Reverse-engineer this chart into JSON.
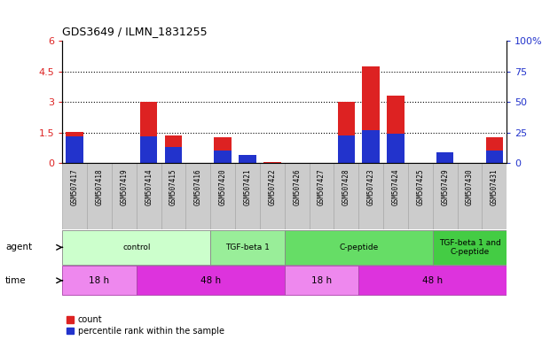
{
  "title": "GDS3649 / ILMN_1831255",
  "samples": [
    "GSM507417",
    "GSM507418",
    "GSM507419",
    "GSM507414",
    "GSM507415",
    "GSM507416",
    "GSM507420",
    "GSM507421",
    "GSM507422",
    "GSM507426",
    "GSM507427",
    "GSM507428",
    "GSM507423",
    "GSM507424",
    "GSM507425",
    "GSM507429",
    "GSM507430",
    "GSM507431"
  ],
  "count_values": [
    1.55,
    0.0,
    0.0,
    3.02,
    1.35,
    0.0,
    1.27,
    0.0,
    0.07,
    0.0,
    0.0,
    3.02,
    4.75,
    3.32,
    0.0,
    0.0,
    0.0,
    1.27
  ],
  "percentile_values_pct": [
    22,
    0,
    0,
    22,
    13,
    0,
    10,
    7,
    0,
    0,
    0,
    23,
    27,
    24,
    0,
    9,
    0,
    10
  ],
  "ylim_left": [
    0,
    6
  ],
  "ylim_right": [
    0,
    100
  ],
  "yticks_left": [
    0,
    1.5,
    3.0,
    4.5,
    6.0
  ],
  "yticks_right": [
    0,
    25,
    50,
    75,
    100
  ],
  "ytick_labels_left": [
    "0",
    "1.5",
    "3",
    "4.5",
    "6"
  ],
  "ytick_labels_right": [
    "0",
    "25",
    "50",
    "75",
    "100%"
  ],
  "bar_color_count": "#dd2222",
  "bar_color_percentile": "#2233cc",
  "agent_groups": [
    {
      "label": "control",
      "start": 0,
      "end": 5,
      "color": "#ccffcc"
    },
    {
      "label": "TGF-beta 1",
      "start": 6,
      "end": 8,
      "color": "#99ee99"
    },
    {
      "label": "C-peptide",
      "start": 9,
      "end": 14,
      "color": "#66dd66"
    },
    {
      "label": "TGF-beta 1 and\nC-peptide",
      "start": 15,
      "end": 17,
      "color": "#44cc44"
    }
  ],
  "time_groups": [
    {
      "label": "18 h",
      "start": 0,
      "end": 2,
      "color": "#ee88ee"
    },
    {
      "label": "48 h",
      "start": 3,
      "end": 8,
      "color": "#dd33dd"
    },
    {
      "label": "18 h",
      "start": 9,
      "end": 11,
      "color": "#ee88ee"
    },
    {
      "label": "48 h",
      "start": 12,
      "end": 17,
      "color": "#dd33dd"
    }
  ],
  "legend_count_label": "count",
  "legend_percentile_label": "percentile rank within the sample",
  "sample_bg_color": "#cccccc",
  "sample_border_color": "#aaaaaa"
}
